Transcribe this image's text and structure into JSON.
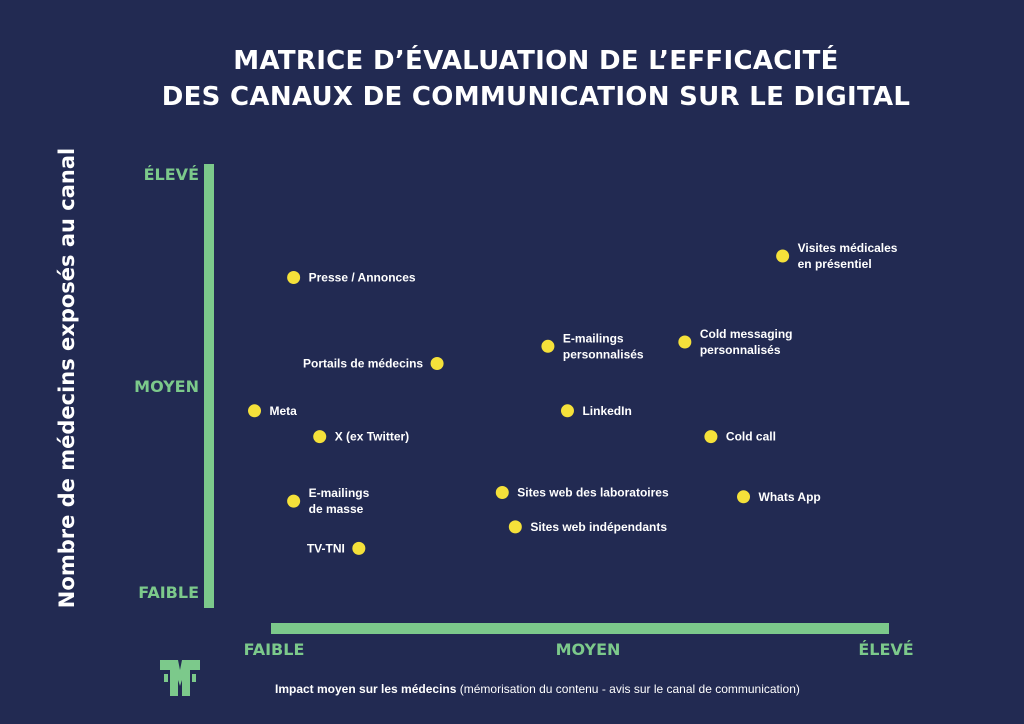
{
  "colors": {
    "background": "#222a52",
    "axis": "#7cc98b",
    "point": "#f5e13a",
    "text": "#ffffff",
    "logo": "#7cc98b"
  },
  "logo_icon": "laurier-logo-icon",
  "chart_data": {
    "type": "scatter",
    "title": [
      "MATRICE D’ÉVALUATION DE L’EFFICACITÉ",
      "DES CANAUX DE COMMUNICATION SUR LE DIGITAL"
    ],
    "ylabel": "Nombre de médecins exposés au canal",
    "xlabel_bold": "Impact moyen sur les médecins",
    "xlabel_rest": " (mémorisation du contenu - avis sur le canal de communication)",
    "x_ticks": [
      "FAIBLE",
      "MOYEN",
      "ÉLEVÉ"
    ],
    "y_ticks": [
      "FAIBLE",
      "MOYEN",
      "ÉLEVÉ"
    ],
    "xlim": [
      0,
      10
    ],
    "ylim": [
      0,
      10
    ],
    "grid": false,
    "legend": "none",
    "points": [
      {
        "label": [
          "Visites médicales",
          "en présentiel"
        ],
        "x": 8.2,
        "y": 8.0,
        "label_side": "right"
      },
      {
        "label": [
          "Presse / Annonces"
        ],
        "x": 0.7,
        "y": 7.5,
        "label_side": "right"
      },
      {
        "label": [
          "Portails de médecins"
        ],
        "x": 2.9,
        "y": 5.5,
        "label_side": "left"
      },
      {
        "label": [
          "E-mailings",
          "personnalisés"
        ],
        "x": 4.6,
        "y": 5.9,
        "label_side": "right"
      },
      {
        "label": [
          "Cold messaging",
          "personnalisés"
        ],
        "x": 6.7,
        "y": 6.0,
        "label_side": "right"
      },
      {
        "label": [
          "Meta"
        ],
        "x": 0.1,
        "y": 4.4,
        "label_side": "right"
      },
      {
        "label": [
          "LinkedIn"
        ],
        "x": 4.9,
        "y": 4.4,
        "label_side": "right"
      },
      {
        "label": [
          "X (ex Twitter)"
        ],
        "x": 1.1,
        "y": 3.8,
        "label_side": "right"
      },
      {
        "label": [
          "Cold call"
        ],
        "x": 7.1,
        "y": 3.8,
        "label_side": "right"
      },
      {
        "label": [
          "E-mailings",
          "de masse"
        ],
        "x": 0.7,
        "y": 2.3,
        "label_side": "right"
      },
      {
        "label": [
          "Sites web des laboratoires"
        ],
        "x": 3.9,
        "y": 2.5,
        "label_side": "right"
      },
      {
        "label": [
          "Whats App"
        ],
        "x": 7.6,
        "y": 2.4,
        "label_side": "right"
      },
      {
        "label": [
          "Sites web indépendants"
        ],
        "x": 4.1,
        "y": 1.7,
        "label_side": "right"
      },
      {
        "label": [
          "TV-TNI"
        ],
        "x": 1.7,
        "y": 1.2,
        "label_side": "left"
      }
    ]
  }
}
